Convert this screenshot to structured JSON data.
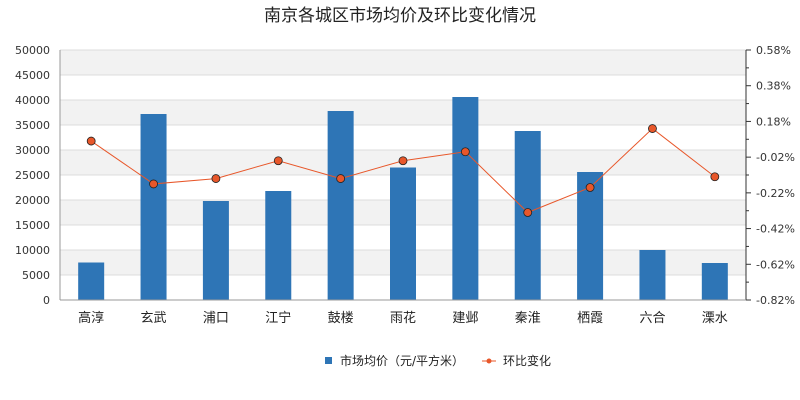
{
  "chart_data": {
    "type": "bar",
    "title": "南京各城区市场均价及环比变化情况",
    "categories": [
      "高淳",
      "玄武",
      "浦口",
      "江宁",
      "鼓楼",
      "雨花",
      "建邺",
      "秦淮",
      "栖霞",
      "六合",
      "溧水"
    ],
    "series": [
      {
        "name": "市场均价（元/平方米）",
        "type": "bar",
        "axis": "left",
        "values": [
          7500,
          37200,
          19800,
          21800,
          37800,
          26500,
          40600,
          33800,
          25600,
          10000,
          7400
        ],
        "color": "#2e75b6"
      },
      {
        "name": "环比变化",
        "type": "line",
        "axis": "right",
        "values": [
          0.07,
          -0.17,
          -0.14,
          -0.04,
          -0.14,
          -0.04,
          0.01,
          -0.33,
          -0.19,
          0.14,
          -0.13
        ],
        "color": "#e8572a",
        "marker_color": "#e8572a"
      }
    ],
    "y_left": {
      "min": 0,
      "max": 50000,
      "ticks": [
        0,
        5000,
        10000,
        15000,
        20000,
        25000,
        30000,
        35000,
        40000,
        45000,
        50000
      ]
    },
    "y_right": {
      "min": -0.82,
      "max": 0.58,
      "ticks": [
        -0.82,
        -0.62,
        -0.42,
        -0.22,
        -0.02,
        0.18,
        0.38,
        0.58
      ],
      "tick_labels": [
        "-0.82%",
        "-0.62%",
        "-0.42%",
        "-0.22%",
        "-0.02%",
        "0.18%",
        "0.38%",
        "0.58%"
      ]
    },
    "grid": true,
    "legend": "bottom-center"
  }
}
